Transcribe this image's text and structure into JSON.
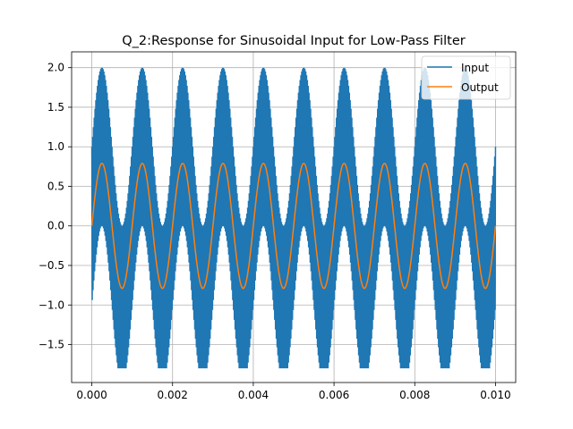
{
  "chart_data": {
    "type": "line",
    "title": "Q_2:Response for Sinusoidal Input for Low-Pass Filter",
    "xlabel": "",
    "ylabel": "",
    "xlim": [
      -0.0005,
      0.0105
    ],
    "ylim": [
      -1.98,
      2.2
    ],
    "x_ticks": [
      0.0,
      0.002,
      0.004,
      0.006,
      0.008,
      0.01
    ],
    "x_tick_labels": [
      "0.000",
      "0.002",
      "0.004",
      "0.006",
      "0.008",
      "0.010"
    ],
    "y_ticks": [
      -1.5,
      -1.0,
      -0.5,
      0.0,
      0.5,
      1.0,
      1.5,
      2.0
    ],
    "y_tick_labels": [
      "−1.5",
      "−1.0",
      "−0.5",
      "0.0",
      "0.5",
      "1.0",
      "1.5",
      "2.0"
    ],
    "grid": true,
    "legend_position": "top-right",
    "series": [
      {
        "name": "Input",
        "color": "#1f77b4",
        "description_components": [
          {
            "amplitude": 1.0,
            "frequency_hz": 1000
          },
          {
            "amplitude": 1.0,
            "frequency_hz": 50000
          }
        ],
        "x_range": [
          0.0,
          0.01
        ],
        "envelope_peaks": [
          2.0,
          2.0,
          2.0,
          2.0,
          2.0,
          2.0,
          2.0,
          2.0,
          2.0,
          2.0
        ],
        "envelope_troughs": [
          -1.8,
          -1.8,
          -1.8,
          -1.8,
          -1.8,
          -1.8,
          -1.8,
          -1.8,
          -1.8,
          -1.8
        ]
      },
      {
        "name": "Output",
        "color": "#ff7f0e",
        "amplitude": 0.79,
        "frequency_hz": 1000,
        "x_range": [
          0.0,
          0.01
        ],
        "x": [
          0.0,
          0.00025,
          0.0005,
          0.00075,
          0.001,
          0.00125,
          0.0015,
          0.00175,
          0.002,
          0.00225,
          0.0025,
          0.00275,
          0.003,
          0.00325,
          0.0035,
          0.00375,
          0.004,
          0.00425,
          0.0045,
          0.00475,
          0.005,
          0.00525,
          0.0055,
          0.00575,
          0.006,
          0.00625,
          0.0065,
          0.00675,
          0.007,
          0.00725,
          0.0075,
          0.00775,
          0.008,
          0.00825,
          0.0085,
          0.00875,
          0.009,
          0.00925,
          0.0095,
          0.00975,
          0.01
        ],
        "y": [
          0.0,
          0.79,
          0.0,
          -0.79,
          0.0,
          0.79,
          0.0,
          -0.79,
          0.0,
          0.79,
          0.0,
          -0.79,
          0.0,
          0.79,
          0.0,
          -0.79,
          0.0,
          0.79,
          0.0,
          -0.79,
          0.0,
          0.79,
          0.0,
          -0.79,
          0.0,
          0.79,
          0.0,
          -0.79,
          0.0,
          0.79,
          0.0,
          -0.79,
          0.0,
          0.79,
          0.0,
          -0.79,
          0.0,
          0.79,
          0.0,
          -0.79,
          -0.1
        ]
      }
    ]
  }
}
